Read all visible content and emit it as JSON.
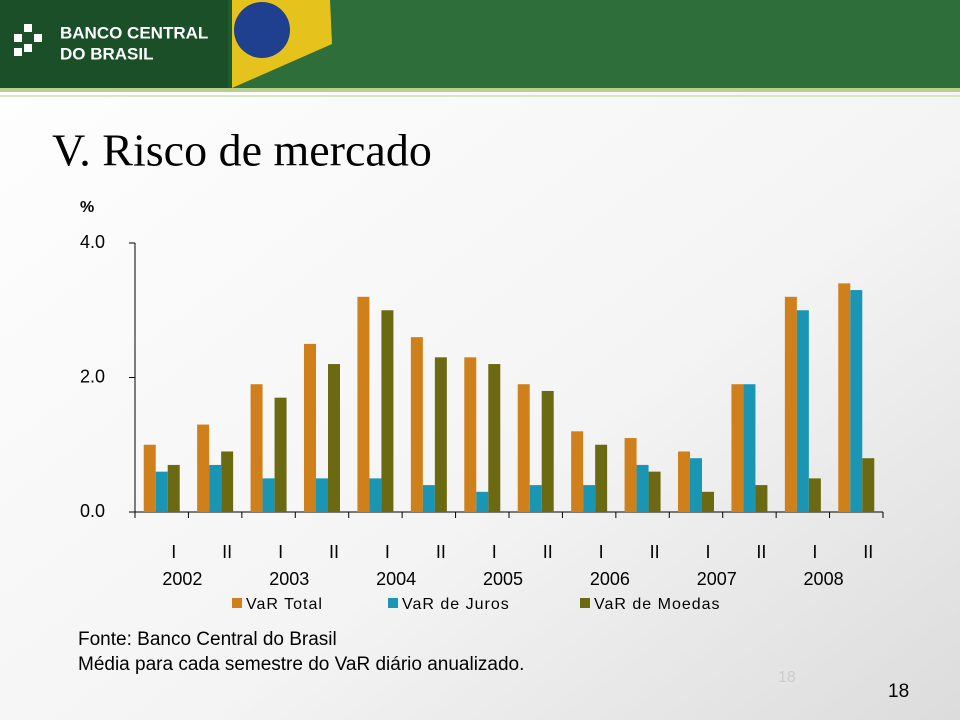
{
  "header": {
    "logo_line1": "BANCO CENTRAL",
    "logo_line2": "DO BRASIL"
  },
  "page_number": "18",
  "chart_data": {
    "type": "bar",
    "title": "V. Risco de mercado",
    "y_unit": "%",
    "categories": [
      "I",
      "II",
      "I",
      "II",
      "I",
      "II",
      "I",
      "II",
      "I",
      "II",
      "I",
      "II",
      "I",
      "II"
    ],
    "years": [
      "2002",
      "2003",
      "2004",
      "2005",
      "2006",
      "2007",
      "2008"
    ],
    "series": [
      {
        "name": "VaR Total",
        "color": "#d0801a",
        "values": [
          1.0,
          1.3,
          1.9,
          2.5,
          3.2,
          2.6,
          2.3,
          1.9,
          1.2,
          1.1,
          0.9,
          1.9,
          3.2,
          3.4
        ]
      },
      {
        "name": "VaR de Juros",
        "color": "#1a96b4",
        "values": [
          0.6,
          0.7,
          0.5,
          0.5,
          0.5,
          0.4,
          0.3,
          0.4,
          0.4,
          0.7,
          0.8,
          1.9,
          3.0,
          3.3
        ]
      },
      {
        "name": "VaR de Moedas",
        "color": "#6b6a12",
        "values": [
          0.7,
          0.9,
          1.7,
          2.2,
          3.0,
          2.3,
          2.2,
          1.8,
          1.0,
          0.6,
          0.3,
          0.4,
          0.5,
          0.8
        ]
      }
    ],
    "ylim": [
      0,
      4
    ],
    "yticks": [
      {
        "value": 0,
        "label": "0.0"
      },
      {
        "value": 2,
        "label": "2.0"
      },
      {
        "value": 4,
        "label": "4.0"
      }
    ],
    "source": "Fonte: Banco Central do Brasil",
    "note": "Média para cada semestre do VaR diário anualizado."
  }
}
